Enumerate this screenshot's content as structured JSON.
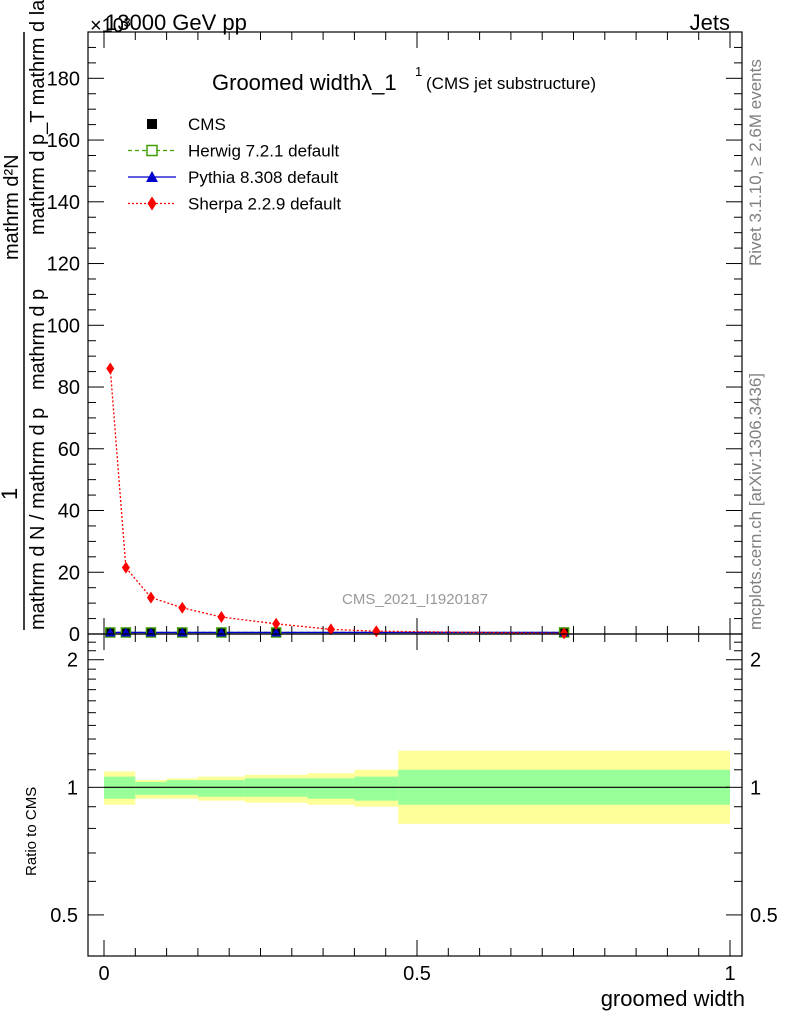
{
  "header": {
    "left": "13000 GeV pp",
    "right": "Jets",
    "exponent": "×10³"
  },
  "side": {
    "rivet": "Rivet 3.1.10, ≥ 2.6M events",
    "mcplots": "mcplots.cern.ch [arXiv:1306.3436]"
  },
  "chart_data": {
    "type": "line",
    "title": "Groomed width λ_1¹ (CMS jet substructure)",
    "title_main": "Groomed widthλ_1",
    "title_sup": "1",
    "title_sub": "(CMS jet substructure)",
    "analysis_label": "CMS_2021_I1920187",
    "ylabel_num": "1",
    "ylabel_den_top": "mathrm d N / mathrm d p_T mathrm d p_T mathrm d lambda",
    "ylabel_frac_num": "mathrm d²N",
    "ylabel_frac_den": "mathrm d p_T mathrm d lambda",
    "ylabel_full_left": "mathrm d N / mathrm d p",
    "ylabel_full_mid": "mathrm d p",
    "xlabel": "groomed width",
    "ratio_ylabel": "Ratio to CMS",
    "xlim": [
      0,
      1
    ],
    "ylim": [
      0,
      195000
    ],
    "ratio_ylim": [
      0.4,
      2.3
    ],
    "x_ticks": [
      0,
      0.5,
      1
    ],
    "x_tick_labels": [
      "0",
      "0.5",
      "1"
    ],
    "y_ticks": [
      0,
      20000,
      40000,
      60000,
      80000,
      100000,
      120000,
      140000,
      160000,
      180000
    ],
    "y_tick_labels": [
      "0",
      "20",
      "40",
      "60",
      "80",
      "100",
      "120",
      "140",
      "160",
      "180"
    ],
    "ratio_ticks": [
      0.5,
      1,
      2
    ],
    "ratio_tick_labels": [
      "0.5",
      "1",
      "2"
    ],
    "legend": [
      "CMS",
      "Herwig 7.2.1 default",
      "Pythia 8.308 default",
      "Sherpa 2.2.9 default"
    ],
    "legend_position": "top-left",
    "colors": {
      "cms": "#000000",
      "herwig": "#3f9f00",
      "pythia": "#0000cc",
      "sherpa": "#ff0000",
      "band_inner": "#99ff99",
      "band_outer": "#ffff99",
      "side_text": "#808080"
    },
    "bins": [
      [
        0,
        0.02
      ],
      [
        0.02,
        0.05
      ],
      [
        0.05,
        0.1
      ],
      [
        0.1,
        0.15
      ],
      [
        0.15,
        0.225
      ],
      [
        0.225,
        0.325
      ],
      [
        0.325,
        0.4
      ],
      [
        0.4,
        0.47
      ],
      [
        0.47,
        1
      ]
    ],
    "series": [
      {
        "name": "CMS",
        "x": [
          0.01,
          0.035,
          0.075,
          0.125,
          0.1875,
          0.275,
          0.735
        ],
        "y": [
          500,
          500,
          500,
          500,
          500,
          500,
          500
        ]
      },
      {
        "name": "Herwig 7.2.1 default",
        "x": [
          0.01,
          0.035,
          0.075,
          0.125,
          0.1875,
          0.275,
          0.735
        ],
        "y": [
          500,
          500,
          500,
          500,
          500,
          500,
          500
        ]
      },
      {
        "name": "Pythia 8.308 default",
        "x": [
          0.01,
          0.035,
          0.075,
          0.125,
          0.1875,
          0.275,
          0.735
        ],
        "y": [
          500,
          500,
          500,
          500,
          500,
          500,
          500
        ]
      },
      {
        "name": "Sherpa 2.2.9 default",
        "x": [
          0.01,
          0.035,
          0.075,
          0.125,
          0.1875,
          0.275,
          0.3625,
          0.435,
          0.735
        ],
        "y": [
          86000,
          21500,
          11800,
          8500,
          5500,
          3300,
          1500,
          900,
          200
        ]
      }
    ],
    "ratio_bands": [
      {
        "x": [
          0,
          0.05
        ],
        "inner": [
          0.94,
          1.06
        ],
        "outer": [
          0.91,
          1.09
        ]
      },
      {
        "x": [
          0.05,
          0.1
        ],
        "inner": [
          0.96,
          1.03
        ],
        "outer": [
          0.94,
          1.04
        ]
      },
      {
        "x": [
          0.1,
          0.15
        ],
        "inner": [
          0.96,
          1.04
        ],
        "outer": [
          0.94,
          1.05
        ]
      },
      {
        "x": [
          0.15,
          0.225
        ],
        "inner": [
          0.95,
          1.04
        ],
        "outer": [
          0.93,
          1.06
        ]
      },
      {
        "x": [
          0.225,
          0.325
        ],
        "inner": [
          0.95,
          1.05
        ],
        "outer": [
          0.92,
          1.07
        ]
      },
      {
        "x": [
          0.325,
          0.4
        ],
        "inner": [
          0.94,
          1.05
        ],
        "outer": [
          0.91,
          1.08
        ]
      },
      {
        "x": [
          0.4,
          0.47
        ],
        "inner": [
          0.93,
          1.06
        ],
        "outer": [
          0.9,
          1.1
        ]
      },
      {
        "x": [
          0.47,
          1
        ],
        "inner": [
          0.91,
          1.1
        ],
        "outer": [
          0.82,
          1.22
        ]
      }
    ]
  }
}
